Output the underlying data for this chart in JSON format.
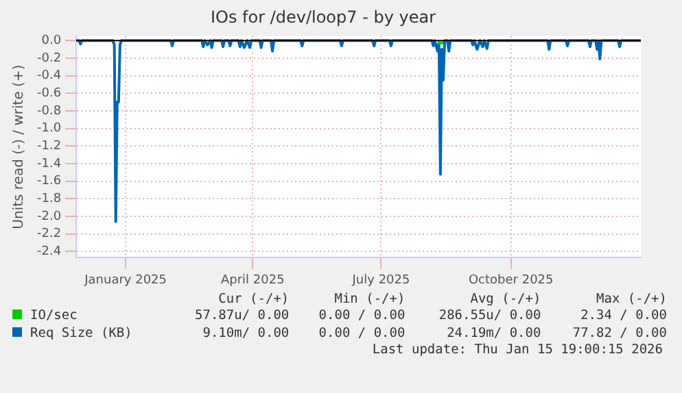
{
  "chart_data": {
    "type": "line",
    "title": "IOs for /dev/loop7 - by year",
    "ylabel": "Units read (-) / write (+)",
    "xlim": [
      "2024-12-11",
      "2026-01-15"
    ],
    "xticks": [
      {
        "value": "2025-01-15",
        "label": "January 2025"
      },
      {
        "value": "2025-04-15",
        "label": "April 2025"
      },
      {
        "value": "2025-07-15",
        "label": "July 2025"
      },
      {
        "value": "2025-10-15",
        "label": "October 2025"
      }
    ],
    "ylim": [
      -2.47,
      0.05
    ],
    "yticks": [
      {
        "value": 0,
        "label": "0.0"
      },
      {
        "value": -0.2,
        "label": "-0.2"
      },
      {
        "value": -0.4,
        "label": "-0.4"
      },
      {
        "value": -0.6,
        "label": "-0.6"
      },
      {
        "value": -0.8,
        "label": "-0.8"
      },
      {
        "value": -1,
        "label": "-1.0"
      },
      {
        "value": -1.2,
        "label": "-1.2"
      },
      {
        "value": -1.4,
        "label": "-1.4"
      },
      {
        "value": -1.6,
        "label": "-1.6"
      },
      {
        "value": -1.8,
        "label": "-1.8"
      },
      {
        "value": -2,
        "label": "-2.0"
      },
      {
        "value": -2.2,
        "label": "-2.2"
      },
      {
        "value": -2.4,
        "label": "-2.4"
      }
    ],
    "grid": true,
    "legend": "bottom",
    "marker": "none",
    "line_style": "solid",
    "ref_lines": [
      {
        "axis": "y",
        "value": 0,
        "label": null,
        "color": "#000000"
      }
    ],
    "series": [
      {
        "name": "IO/sec",
        "color": "#00cc00",
        "x": [
          "2025-08-24",
          "2025-08-26",
          "2025-08-28"
        ],
        "values": [
          -0.02,
          -0.03,
          -0.02
        ]
      },
      {
        "name": "Req Size (KB)",
        "color": "#0066b3",
        "x": [
          "2024-12-11",
          "2024-12-13",
          "2024-12-14",
          "2024-12-15",
          "2025-01-06",
          "2025-01-07",
          "2025-01-08",
          "2025-01-09",
          "2025-01-10",
          "2025-01-11",
          "2025-01-12",
          "2025-02-16",
          "2025-02-17",
          "2025-02-18",
          "2025-03-10",
          "2025-03-11",
          "2025-03-12",
          "2025-03-14",
          "2025-03-16",
          "2025-03-17",
          "2025-03-18",
          "2025-03-24",
          "2025-03-25",
          "2025-03-26",
          "2025-03-29",
          "2025-03-30",
          "2025-03-31",
          "2025-04-05",
          "2025-04-06",
          "2025-04-07",
          "2025-04-09",
          "2025-04-11",
          "2025-04-13",
          "2025-04-14",
          "2025-04-20",
          "2025-04-21",
          "2025-04-22",
          "2025-04-28",
          "2025-04-29",
          "2025-04-30",
          "2025-05-19",
          "2025-05-20",
          "2025-05-21",
          "2025-06-16",
          "2025-06-17",
          "2025-06-18",
          "2025-07-09",
          "2025-07-10",
          "2025-07-11",
          "2025-07-21",
          "2025-07-22",
          "2025-07-23",
          "2025-08-20",
          "2025-08-21",
          "2025-08-22",
          "2025-08-24",
          "2025-08-25",
          "2025-08-26",
          "2025-08-27",
          "2025-08-28",
          "2025-08-29",
          "2025-08-31",
          "2025-09-01",
          "2025-09-02",
          "2025-09-17",
          "2025-09-18",
          "2025-09-19",
          "2025-09-21",
          "2025-09-23",
          "2025-09-25",
          "2025-09-26",
          "2025-09-28",
          "2025-09-29",
          "2025-11-10",
          "2025-11-11",
          "2025-11-12",
          "2025-11-23",
          "2025-11-24",
          "2025-11-25",
          "2025-12-09",
          "2025-12-10",
          "2025-12-11",
          "2025-12-14",
          "2025-12-15",
          "2025-12-16",
          "2025-12-17",
          "2025-12-18",
          "2025-12-30",
          "2025-12-31",
          "2026-01-01",
          "2026-01-15"
        ],
        "values": [
          0,
          0,
          -0.04,
          0,
          0,
          -0.05,
          -2.06,
          -0.7,
          -0.7,
          -0.05,
          0,
          0,
          -0.06,
          0,
          0,
          -0.07,
          0,
          -0.05,
          0,
          -0.08,
          0,
          0,
          -0.07,
          0,
          0,
          -0.06,
          0,
          0,
          -0.07,
          0,
          -0.08,
          0,
          -0.08,
          0,
          0,
          -0.08,
          0,
          0,
          -0.12,
          0,
          0,
          -0.06,
          0,
          0,
          -0.06,
          0,
          0,
          -0.06,
          0,
          0,
          -0.06,
          0,
          0,
          -0.06,
          0,
          -0.12,
          -0.03,
          -1.52,
          -0.1,
          -0.45,
          0,
          0,
          -0.12,
          0,
          0,
          -0.05,
          0,
          -0.1,
          0,
          -0.07,
          0,
          -0.09,
          0,
          0,
          -0.1,
          0,
          0,
          -0.06,
          0,
          0,
          -0.07,
          0,
          0,
          -0.1,
          0,
          -0.21,
          0,
          0,
          -0.07,
          0,
          0
        ]
      }
    ],
    "annotations": [
      "Cur (-/+)",
      "Min (-/+)",
      "Avg (-/+)",
      "Max (-/+)",
      "57.87u/ 0.00",
      "0.00 / 0.00",
      "286.55u/ 0.00",
      "2.34 / 0.00",
      "9.10m/ 0.00",
      "0.00 / 0.00",
      "24.19m/ 0.00",
      "77.82 / 0.00",
      "Last update: Thu Jan 15 19:00:15 2026"
    ]
  }
}
